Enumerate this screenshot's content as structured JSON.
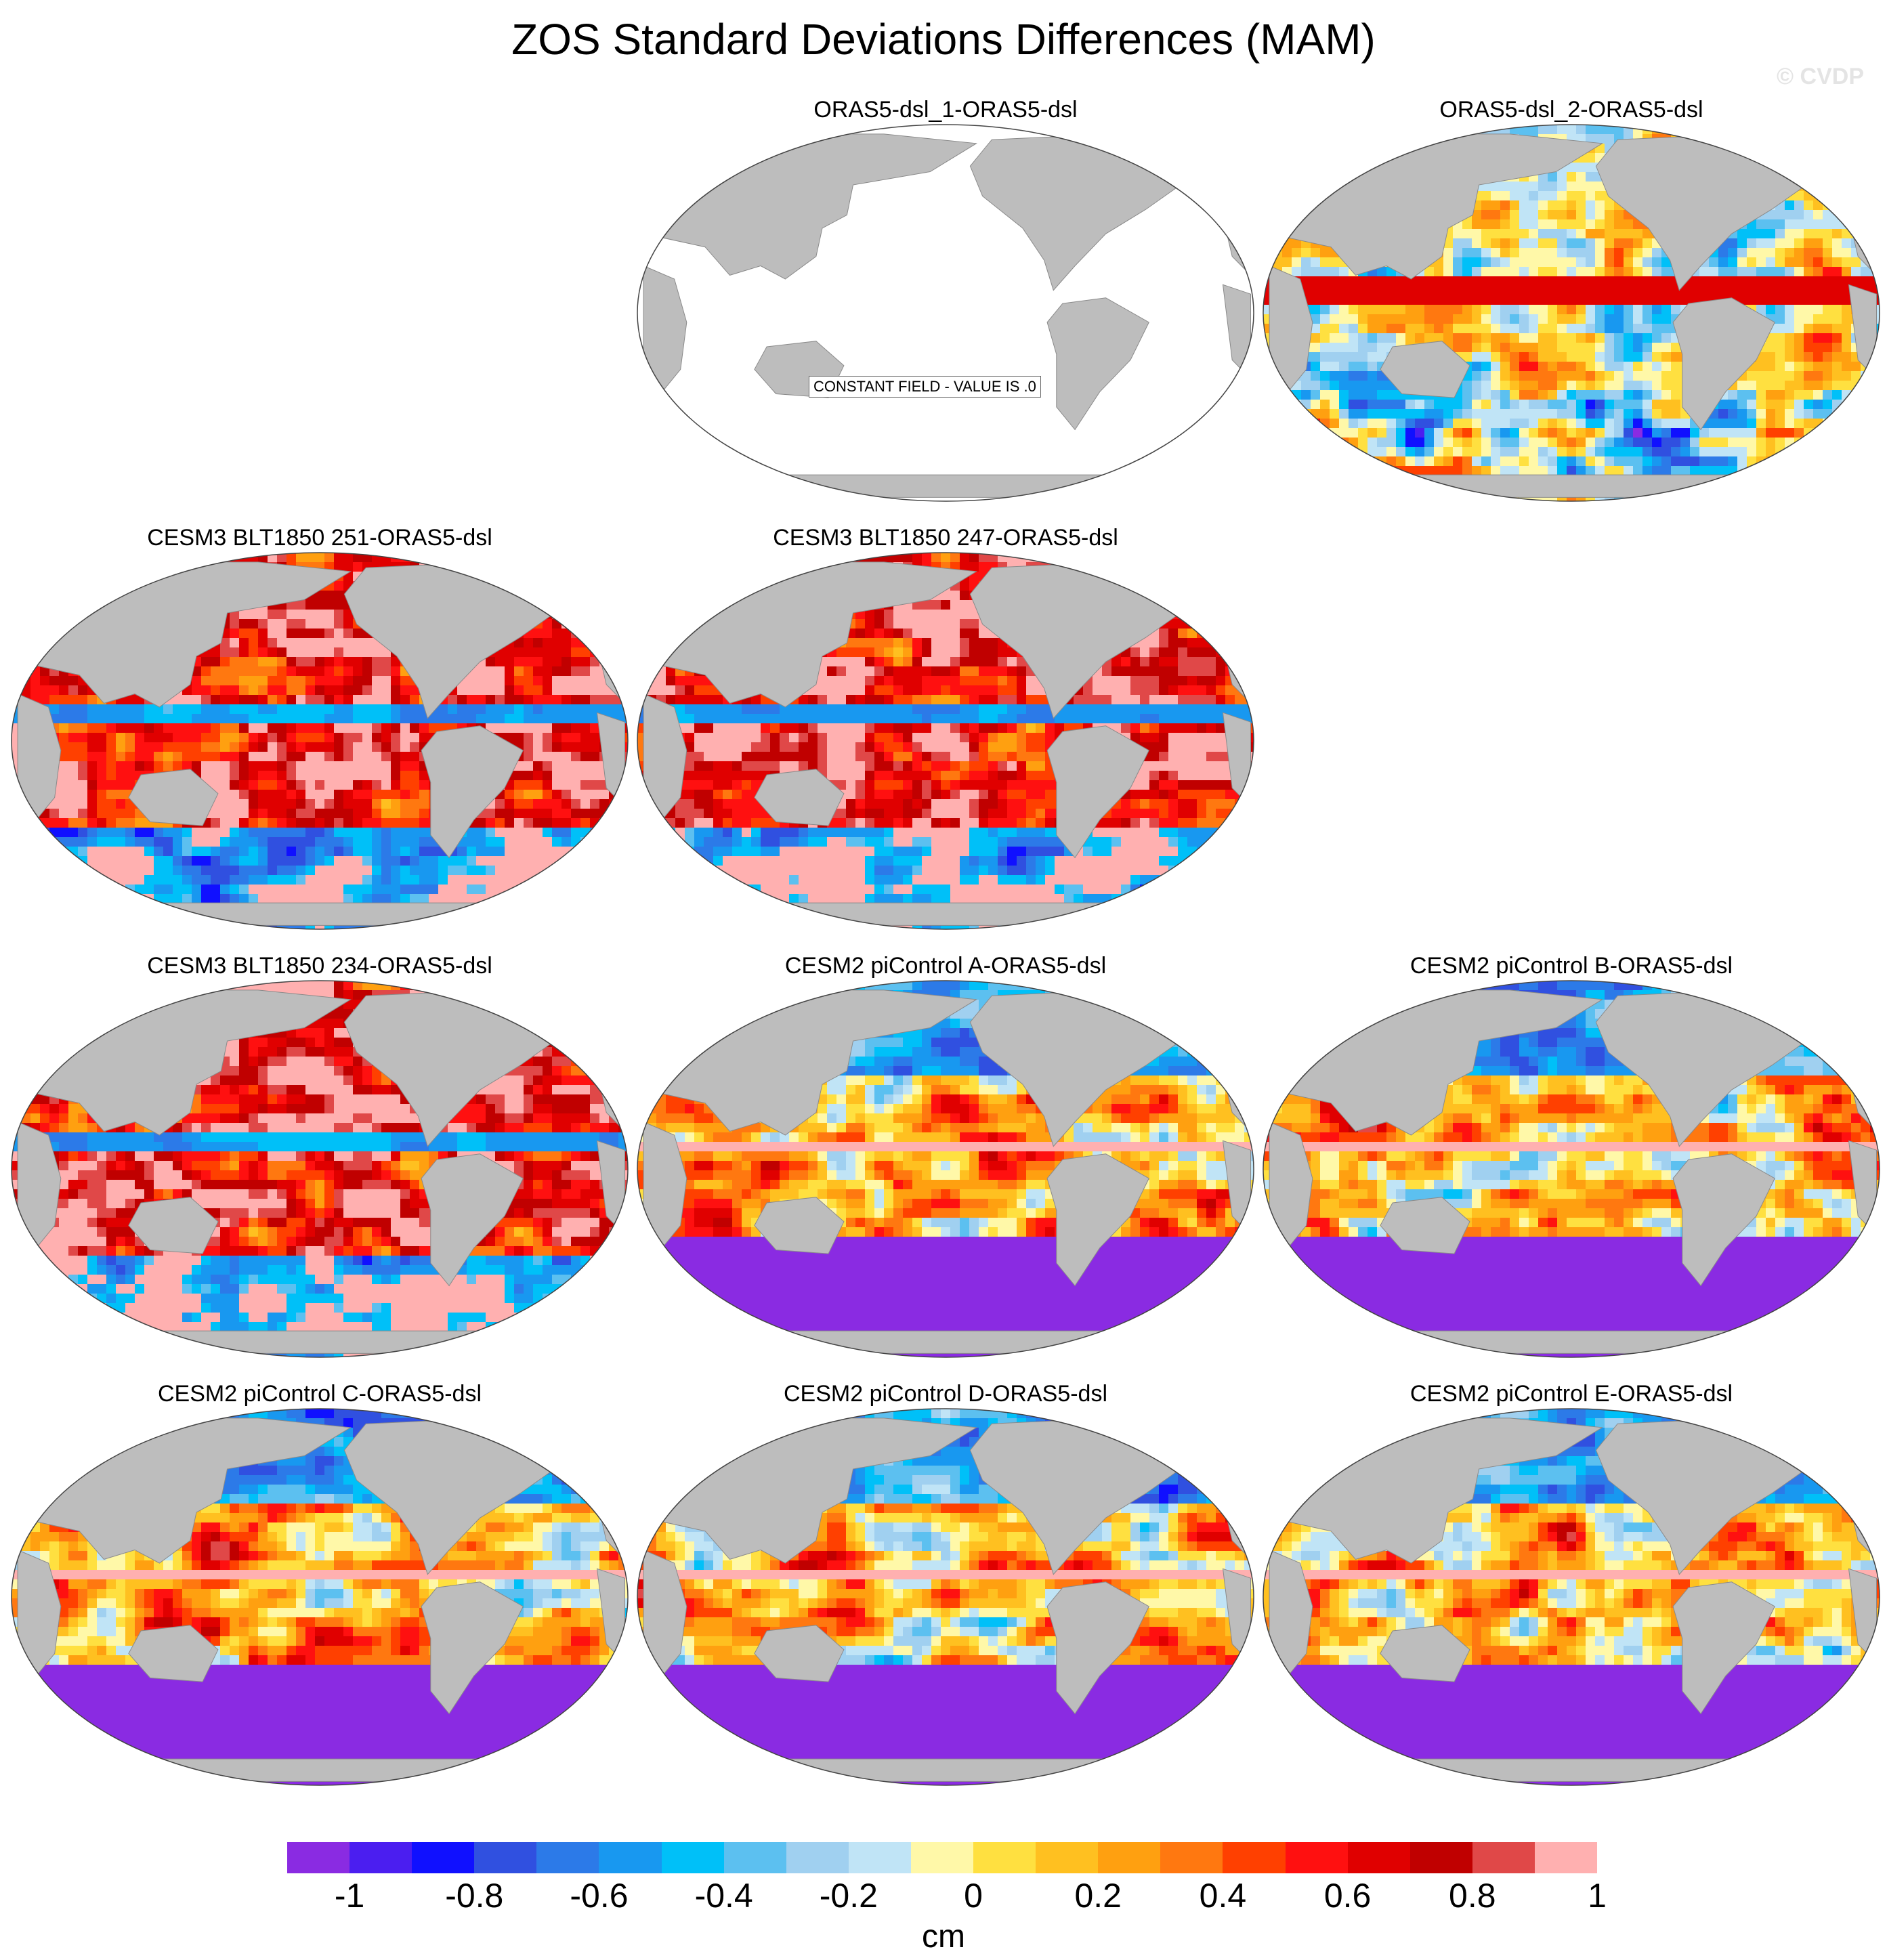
{
  "title": "ZOS Standard Deviations Differences (MAM)",
  "watermark": "© CVDP",
  "colors": {
    "land": "#bdbdbd",
    "ocean_blank": "#ffffff",
    "palette": [
      "#8a2be2",
      "#4b1ef0",
      "#1010ff",
      "#3050e0",
      "#2c7ae8",
      "#1898f0",
      "#00c0f8",
      "#5cc0f0",
      "#a0d0f0",
      "#c0e4f6",
      "#fff8a8",
      "#ffe040",
      "#ffc020",
      "#ffa010",
      "#ff7810",
      "#ff4000",
      "#ff1010",
      "#e00000",
      "#c00000",
      "#e04848",
      "#ffb0b0"
    ]
  },
  "panels": [
    {
      "id": "p1",
      "title": "ORAS5-dsl_1-ORAS5-dsl",
      "constant": true,
      "label": "CONSTANT FIELD - VALUE IS .0"
    },
    {
      "id": "p2",
      "title": "ORAS5-dsl_2-ORAS5-dsl",
      "mode": "mixed"
    },
    {
      "id": "p3",
      "title": "CESM3 BLT1850 251-ORAS5-dsl",
      "mode": "pink"
    },
    {
      "id": "p4",
      "title": "CESM3 BLT1850 247-ORAS5-dsl",
      "mode": "pink"
    },
    {
      "id": "p5",
      "title": "CESM3 BLT1850 234-ORAS5-dsl",
      "mode": "pink"
    },
    {
      "id": "p6",
      "title": "CESM2 piControl A-ORAS5-dsl",
      "mode": "purple"
    },
    {
      "id": "p7",
      "title": "CESM2 piControl B-ORAS5-dsl",
      "mode": "purple"
    },
    {
      "id": "p8",
      "title": "CESM2 piControl C-ORAS5-dsl",
      "mode": "purple"
    },
    {
      "id": "p9",
      "title": "CESM2 piControl D-ORAS5-dsl",
      "mode": "purple"
    },
    {
      "id": "p10",
      "title": "CESM2 piControl E-ORAS5-dsl",
      "mode": "purple"
    }
  ],
  "colorbar": {
    "ticks": [
      "-1",
      "-0.8",
      "-0.6",
      "-0.4",
      "-0.2",
      "0",
      "0.2",
      "0.4",
      "0.6",
      "0.8",
      "1"
    ],
    "units": "cm"
  }
}
